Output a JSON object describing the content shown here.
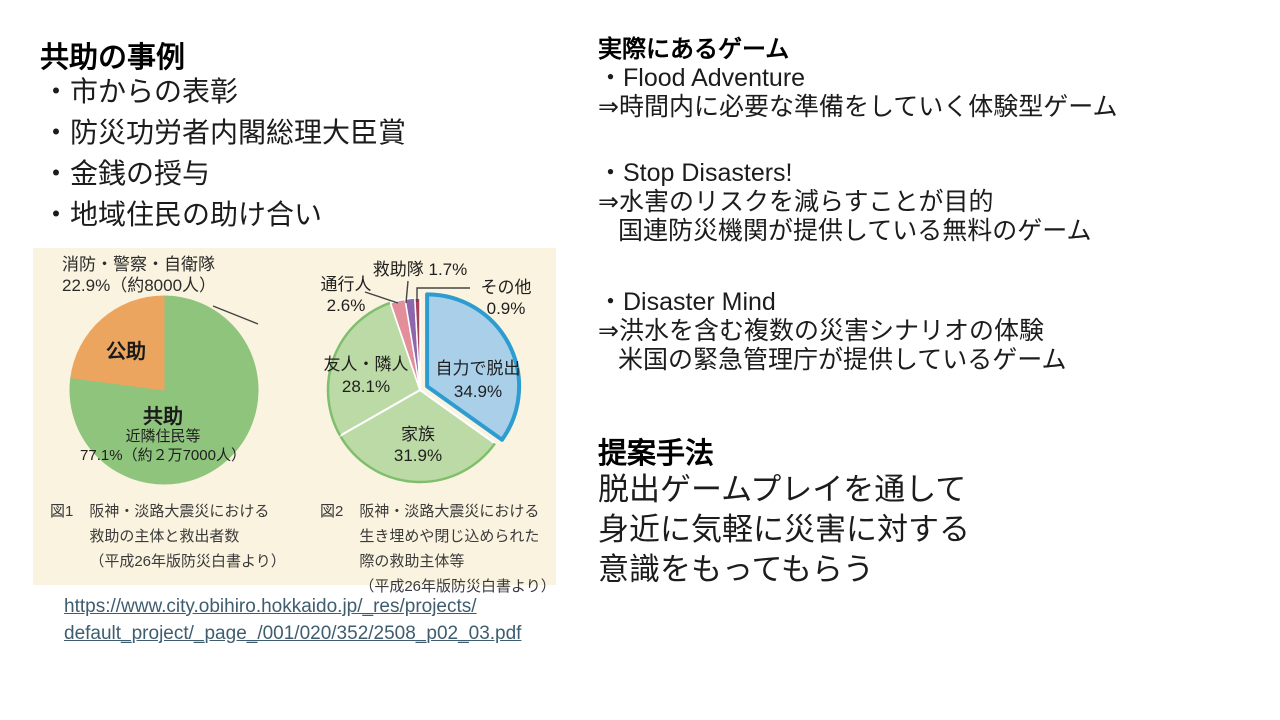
{
  "left": {
    "heading": "共助の事例",
    "bullets": [
      "・市からの表彰",
      "・防災功労者内閣総理大臣賞",
      "・金銭の授与",
      "・地域住民の助け合い"
    ],
    "source_url_line1": "https://www.city.obihiro.hokkaido.jp/_res/projects/",
    "source_url_line2": "default_project/_page_/001/020/352/2508_p02_03.pdf"
  },
  "right": {
    "games_heading": "実際にあるゲーム",
    "games": [
      {
        "name": "・Flood Adventure",
        "desc": [
          "⇒時間内に必要な準備をしていく体験型ゲーム"
        ]
      },
      {
        "name": "・Stop Disasters!",
        "desc": [
          "⇒水害のリスクを減らすことが目的",
          "国連防災機関が提供している無料のゲーム"
        ]
      },
      {
        "name": "・Disaster Mind",
        "desc": [
          "⇒洪水を含む複数の災害シナリオの体験",
          "米国の緊急管理庁が提供しているゲーム"
        ]
      }
    ],
    "proposal_heading": "提案手法",
    "proposal_lines": [
      "脱出ゲームプレイを通して",
      "身近に気軽に災害に対する",
      "意識をもってもらう"
    ]
  },
  "panel_bg": "#FAF3DF",
  "chart_data": [
    {
      "type": "pie",
      "figure": "図1",
      "caption_lines": [
        "阪神・淡路大震災における",
        "救助の主体と救出者数",
        "（平成26年版防災白書より）"
      ],
      "slices": [
        {
          "label": "共助",
          "sublabel": "近隣住民等",
          "value_label": "77.1%（約２万7000人）",
          "value": 77.1,
          "color": "#8FC47D",
          "stroke": "#8FC47D",
          "strokeW": 1
        },
        {
          "label": "公助",
          "callout_line1": "消防・警察・自衛隊",
          "callout_line2": "22.9%（約8000人）",
          "value": 22.9,
          "color": "#ECA55E",
          "stroke": "#ECA55E",
          "strokeW": 1
        }
      ]
    },
    {
      "type": "pie",
      "figure": "図2",
      "caption_lines": [
        "阪神・淡路大震災における",
        "生き埋めや閉じ込められた",
        "際の救助主体等",
        "（平成26年版防災白書より）"
      ],
      "slices": [
        {
          "label": "自力で脱出",
          "value_label": "34.9%",
          "value": 34.9,
          "color": "#A9CFE9",
          "stroke": "#2D9DD1",
          "strokeW": 4,
          "offset": 8
        },
        {
          "label": "家族",
          "value_label": "31.9%",
          "value": 31.9,
          "color": "#BCDAA5",
          "stroke": "#FFFFFF",
          "strokeW": 2,
          "rim": "#7FBE6D"
        },
        {
          "label": "友人・隣人",
          "value_label": "28.1%",
          "value": 28.1,
          "color": "#BCDAA5",
          "stroke": "#FFFFFF",
          "strokeW": 2,
          "rim": "#7FBE6D"
        },
        {
          "label": "通行人",
          "value_label": "2.6%",
          "value": 2.6,
          "color": "#E28F9B",
          "stroke": "#FFFFFF",
          "strokeW": 1.5
        },
        {
          "label": "救助隊",
          "value_label": "1.7%",
          "value": 1.7,
          "color": "#8C67AD",
          "stroke": "#FFFFFF",
          "strokeW": 1.5
        },
        {
          "label": "その他",
          "value_label": "0.9%",
          "value": 0.9,
          "color": "#A84059",
          "stroke": "#FFFFFF",
          "strokeW": 1.5
        }
      ]
    }
  ]
}
